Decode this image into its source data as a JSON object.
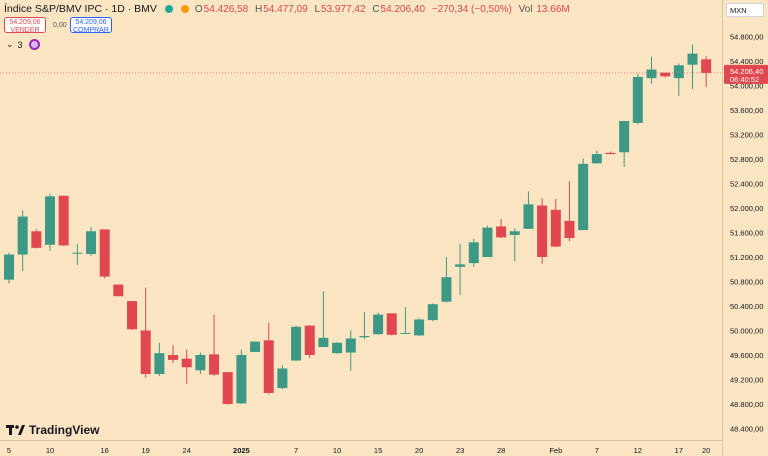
{
  "header": {
    "title": "Índice S&P/BMV IPC · 1D · BMV",
    "market_dot_color": "#26a69a",
    "dot2_color": "#ff9800",
    "ohlc": {
      "o_label": "O",
      "o": "54.426,58",
      "h_label": "H",
      "h": "54.477,09",
      "l_label": "L",
      "l": "53.977,42",
      "c_label": "C",
      "c": "54.206,40",
      "change": "−270,34 (−0,50%)",
      "vol_label": "Vol",
      "vol": "13.66M"
    }
  },
  "trade": {
    "sell_price": "54.209,06",
    "sell_label": "VENDER",
    "spread": "0,00",
    "buy_price": "54.209,06",
    "buy_label": "COMPRAR"
  },
  "indicators": {
    "count": "3"
  },
  "currency": "MXN",
  "brand": "TradingView",
  "colors": {
    "up": "#3d9985",
    "down": "#e0474f",
    "bg": "#fce5c2",
    "text": "#131722"
  },
  "price_label": {
    "price": "54.206,40",
    "countdown": "06:40:52"
  },
  "chart_data": {
    "type": "candlestick",
    "ylim": [
      48400,
      54800
    ],
    "y_ticks": [
      54800,
      54400,
      54000,
      53600,
      53200,
      52800,
      52400,
      52000,
      51600,
      51200,
      50800,
      50400,
      50000,
      49600,
      49200,
      48800,
      48400
    ],
    "y_tick_labels": [
      "54.800,00",
      "54.400,00",
      "54.000,00",
      "53.600,00",
      "53.200,00",
      "52.800,00",
      "52.400,00",
      "52.000,00",
      "51.600,00",
      "51.200,00",
      "50.800,00",
      "50.400,00",
      "50.000,00",
      "49.600,00",
      "49.200,00",
      "48.800,00",
      "48.400,00"
    ],
    "x_tick_labels": [
      "5",
      "10",
      "16",
      "19",
      "24",
      "2025",
      "7",
      "10",
      "15",
      "20",
      "23",
      "28",
      "Feb",
      "7",
      "12",
      "17",
      "20"
    ],
    "x_tick_index": [
      0,
      3,
      7,
      10,
      13,
      17,
      21,
      24,
      27,
      30,
      33,
      36,
      40,
      43,
      46,
      49,
      51
    ],
    "grid": false,
    "current_price": 54206.4,
    "candles": [
      {
        "o": 50830,
        "h": 51270,
        "l": 50770,
        "c": 51240
      },
      {
        "o": 51240,
        "h": 51960,
        "l": 50970,
        "c": 51860
      },
      {
        "o": 51620,
        "h": 51650,
        "l": 51340,
        "c": 51350
      },
      {
        "o": 51400,
        "h": 52230,
        "l": 51300,
        "c": 52190
      },
      {
        "o": 52200,
        "h": 52200,
        "l": 51380,
        "c": 51390
      },
      {
        "o": 51270,
        "h": 51410,
        "l": 51070,
        "c": 51270
      },
      {
        "o": 51250,
        "h": 51690,
        "l": 51220,
        "c": 51620
      },
      {
        "o": 51650,
        "h": 51650,
        "l": 50850,
        "c": 50880
      },
      {
        "o": 50750,
        "h": 50750,
        "l": 50560,
        "c": 50560
      },
      {
        "o": 50480,
        "h": 50480,
        "l": 50010,
        "c": 50020
      },
      {
        "o": 50000,
        "h": 50700,
        "l": 49230,
        "c": 49290
      },
      {
        "o": 49290,
        "h": 49800,
        "l": 49260,
        "c": 49630
      },
      {
        "o": 49600,
        "h": 49760,
        "l": 49470,
        "c": 49520
      },
      {
        "o": 49540,
        "h": 49690,
        "l": 49130,
        "c": 49400
      },
      {
        "o": 49350,
        "h": 49640,
        "l": 49290,
        "c": 49600
      },
      {
        "o": 49610,
        "h": 50260,
        "l": 49260,
        "c": 49280
      },
      {
        "o": 49320,
        "h": 49320,
        "l": 48790,
        "c": 48800
      },
      {
        "o": 48810,
        "h": 49690,
        "l": 48800,
        "c": 49600
      },
      {
        "o": 49650,
        "h": 49820,
        "l": 49650,
        "c": 49820
      },
      {
        "o": 49840,
        "h": 50130,
        "l": 48960,
        "c": 48980
      },
      {
        "o": 49060,
        "h": 49430,
        "l": 49040,
        "c": 49380
      },
      {
        "o": 49510,
        "h": 50080,
        "l": 49500,
        "c": 50060
      },
      {
        "o": 50080,
        "h": 50090,
        "l": 49550,
        "c": 49600
      },
      {
        "o": 49730,
        "h": 50640,
        "l": 49730,
        "c": 49880
      },
      {
        "o": 49630,
        "h": 49810,
        "l": 49620,
        "c": 49800
      },
      {
        "o": 49640,
        "h": 50000,
        "l": 49340,
        "c": 49870
      },
      {
        "o": 49890,
        "h": 50300,
        "l": 49860,
        "c": 49910
      },
      {
        "o": 49940,
        "h": 50290,
        "l": 49930,
        "c": 50260
      },
      {
        "o": 50280,
        "h": 50280,
        "l": 49920,
        "c": 49930
      },
      {
        "o": 49960,
        "h": 50380,
        "l": 49950,
        "c": 49960
      },
      {
        "o": 49920,
        "h": 50200,
        "l": 49910,
        "c": 50180
      },
      {
        "o": 50170,
        "h": 50440,
        "l": 50150,
        "c": 50430
      },
      {
        "o": 50470,
        "h": 51200,
        "l": 50460,
        "c": 50870
      },
      {
        "o": 51040,
        "h": 51420,
        "l": 50580,
        "c": 51080
      },
      {
        "o": 51100,
        "h": 51500,
        "l": 51040,
        "c": 51440
      },
      {
        "o": 51200,
        "h": 51710,
        "l": 51200,
        "c": 51680
      },
      {
        "o": 51700,
        "h": 51820,
        "l": 51510,
        "c": 51520
      },
      {
        "o": 51560,
        "h": 51670,
        "l": 51130,
        "c": 51620
      },
      {
        "o": 51660,
        "h": 52270,
        "l": 51660,
        "c": 52060
      },
      {
        "o": 52040,
        "h": 52160,
        "l": 51090,
        "c": 51200
      },
      {
        "o": 51970,
        "h": 52150,
        "l": 51360,
        "c": 51370
      },
      {
        "o": 51790,
        "h": 52440,
        "l": 51460,
        "c": 51510
      },
      {
        "o": 51640,
        "h": 52810,
        "l": 51640,
        "c": 52720
      },
      {
        "o": 52730,
        "h": 52940,
        "l": 52720,
        "c": 52880
      },
      {
        "o": 52900,
        "h": 52920,
        "l": 52880,
        "c": 52880
      },
      {
        "o": 52910,
        "h": 53420,
        "l": 52670,
        "c": 53420
      },
      {
        "o": 53390,
        "h": 54190,
        "l": 53370,
        "c": 54140
      },
      {
        "o": 54120,
        "h": 54470,
        "l": 54030,
        "c": 54260
      },
      {
        "o": 54210,
        "h": 54200,
        "l": 54130,
        "c": 54150
      },
      {
        "o": 54120,
        "h": 54360,
        "l": 53830,
        "c": 54330
      },
      {
        "o": 54340,
        "h": 54670,
        "l": 53940,
        "c": 54520
      },
      {
        "o": 54427,
        "h": 54477,
        "l": 53977,
        "c": 54206
      }
    ]
  }
}
